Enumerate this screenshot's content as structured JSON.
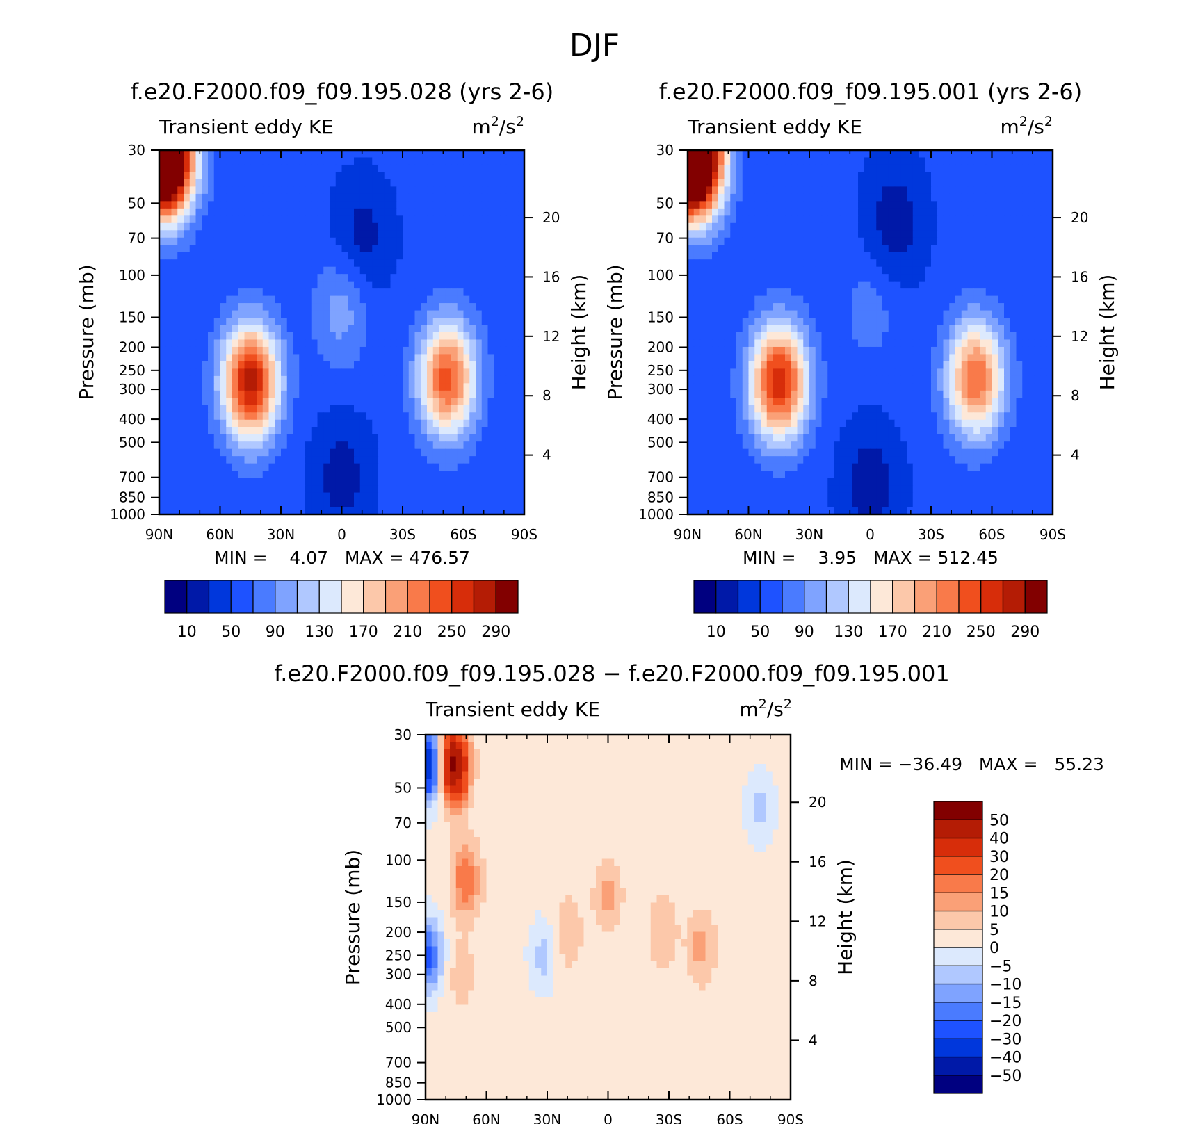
{
  "figure": {
    "title": "DJF"
  },
  "panels": [
    {
      "id": "case1",
      "title": "f.e20.F2000.f09_f09.195.028 (yrs 2-6)",
      "left_label": "Transient eddy KE",
      "right_label": "m²/s²",
      "stats": "MIN =    4.07   MAX = 476.57"
    },
    {
      "id": "case2",
      "title": "f.e20.F2000.f09_f09.195.001 (yrs 2-6)",
      "left_label": "Transient eddy KE",
      "right_label": "m²/s²",
      "stats": "MIN =    3.95   MAX = 512.45"
    },
    {
      "id": "diff",
      "title": "f.e20.F2000.f09_f09.195.028 − f.e20.F2000.f09_f09.195.001",
      "left_label": "Transient eddy KE",
      "right_label": "m²/s²",
      "stats": "MIN = −36.49   MAX =   55.23"
    }
  ],
  "chart_data": [
    {
      "type": "heatmap",
      "title": "f.e20.F2000.f09_f09.195.028 (yrs 2-6)",
      "variable": "Transient eddy KE",
      "units": "m²/s²",
      "xlabel": "",
      "ylabel": "Pressure (mb)",
      "ylabel_right": "Height (km)",
      "x_ticks": [
        "90N",
        "60N",
        "30N",
        "0",
        "30S",
        "60S",
        "90S"
      ],
      "y_ticks": [
        30,
        50,
        70,
        100,
        150,
        200,
        250,
        300,
        400,
        500,
        700,
        850,
        1000
      ],
      "y_scale": "log",
      "y_range": [
        1000,
        30
      ],
      "right_ticks": [
        4,
        8,
        12,
        16,
        20
      ],
      "x_range": [
        90,
        -90
      ],
      "min": 4.07,
      "max": 476.57,
      "colorbar": {
        "orientation": "horizontal",
        "levels": [
          10,
          30,
          50,
          70,
          90,
          110,
          130,
          150,
          170,
          190,
          210,
          230,
          250,
          270,
          290
        ],
        "tick_labels": [
          "10",
          "50",
          "90",
          "130",
          "170",
          "210",
          "250",
          "290"
        ],
        "colors": [
          "#000080",
          "#0019a8",
          "#0037dc",
          "#1e52ff",
          "#4a7bff",
          "#7fa3ff",
          "#b0c8ff",
          "#dce9fd",
          "#fde8d8",
          "#fcc8aa",
          "#faa077",
          "#f97a4a",
          "#f04f1e",
          "#d72d0a",
          "#b41c05",
          "#820000"
        ]
      },
      "features": [
        {
          "name": "NH stratospheric polar max",
          "lat": 88,
          "p": 32,
          "value": 476.57
        },
        {
          "name": "NH subtropical jet eddy max",
          "lat": 45,
          "p": 280,
          "value": 280
        },
        {
          "name": "SH jet eddy max",
          "lat": -52,
          "p": 270,
          "value": 240
        },
        {
          "name": "tropical upper-troposphere max",
          "lat": 0,
          "p": 140,
          "value": 100
        },
        {
          "name": "stratospheric minimum",
          "lat": -10,
          "p": 70,
          "value": 20
        },
        {
          "name": "tropical lower-troposphere minimum",
          "lat": 0,
          "p": 700,
          "value": 20
        }
      ]
    },
    {
      "type": "heatmap",
      "title": "f.e20.F2000.f09_f09.195.001 (yrs 2-6)",
      "variable": "Transient eddy KE",
      "units": "m²/s²",
      "xlabel": "",
      "ylabel": "Pressure (mb)",
      "ylabel_right": "Height (km)",
      "x_ticks": [
        "90N",
        "60N",
        "30N",
        "0",
        "30S",
        "60S",
        "90S"
      ],
      "y_ticks": [
        30,
        50,
        70,
        100,
        150,
        200,
        250,
        300,
        400,
        500,
        700,
        850,
        1000
      ],
      "y_scale": "log",
      "y_range": [
        1000,
        30
      ],
      "right_ticks": [
        4,
        8,
        12,
        16,
        20
      ],
      "x_range": [
        90,
        -90
      ],
      "min": 3.95,
      "max": 512.45,
      "colorbar": {
        "orientation": "horizontal",
        "levels": [
          10,
          30,
          50,
          70,
          90,
          110,
          130,
          150,
          170,
          190,
          210,
          230,
          250,
          270,
          290
        ],
        "tick_labels": [
          "10",
          "50",
          "90",
          "130",
          "170",
          "210",
          "250",
          "290"
        ],
        "colors": [
          "#000080",
          "#0019a8",
          "#0037dc",
          "#1e52ff",
          "#4a7bff",
          "#7fa3ff",
          "#b0c8ff",
          "#dce9fd",
          "#fde8d8",
          "#fcc8aa",
          "#faa077",
          "#f97a4a",
          "#f04f1e",
          "#d72d0a",
          "#b41c05",
          "#820000"
        ]
      },
      "features": [
        {
          "name": "NH stratospheric polar max",
          "lat": 88,
          "p": 32,
          "value": 512.45
        },
        {
          "name": "NH subtropical jet eddy max",
          "lat": 45,
          "p": 280,
          "value": 270
        },
        {
          "name": "SH jet eddy max",
          "lat": -52,
          "p": 270,
          "value": 230
        },
        {
          "name": "tropical upper-troposphere max",
          "lat": 0,
          "p": 140,
          "value": 80
        },
        {
          "name": "stratospheric minimum",
          "lat": -12,
          "p": 60,
          "value": 15
        },
        {
          "name": "tropical lower-troposphere minimum",
          "lat": 0,
          "p": 750,
          "value": 15
        }
      ]
    },
    {
      "type": "heatmap",
      "title": "f.e20.F2000.f09_f09.195.028 − f.e20.F2000.f09_f09.195.001",
      "variable": "Transient eddy KE",
      "units": "m²/s²",
      "xlabel": "",
      "ylabel": "Pressure (mb)",
      "ylabel_right": "Height (km)",
      "x_ticks": [
        "90N",
        "60N",
        "30N",
        "0",
        "30S",
        "60S",
        "90S"
      ],
      "y_ticks": [
        30,
        50,
        70,
        100,
        150,
        200,
        250,
        300,
        400,
        500,
        700,
        850,
        1000
      ],
      "y_scale": "log",
      "y_range": [
        1000,
        30
      ],
      "right_ticks": [
        4,
        8,
        12,
        16,
        20
      ],
      "x_range": [
        90,
        -90
      ],
      "min": -36.49,
      "max": 55.23,
      "colorbar": {
        "orientation": "vertical",
        "levels": [
          -50,
          -40,
          -30,
          -20,
          -15,
          -10,
          -5,
          0,
          5,
          10,
          15,
          20,
          30,
          40,
          50
        ],
        "tick_labels": [
          "−50",
          "−40",
          "−30",
          "−20",
          "−15",
          "−10",
          "−5",
          "0",
          "5",
          "10",
          "15",
          "20",
          "30",
          "40",
          "50"
        ],
        "colors": [
          "#000080",
          "#0019a8",
          "#0037dc",
          "#1e52ff",
          "#4a7bff",
          "#7fa3ff",
          "#b0c8ff",
          "#dce9fd",
          "#fde8d8",
          "#fcc8aa",
          "#faa077",
          "#f97a4a",
          "#f04f1e",
          "#d72d0a",
          "#b41c05",
          "#820000"
        ]
      },
      "features": [
        {
          "name": "NH polar stratosphere positive",
          "lat": 76,
          "p": 40,
          "value": 55.23
        },
        {
          "name": "NH polar edge negative",
          "lat": 89,
          "p": 40,
          "value": -36.49
        },
        {
          "name": "NH upper-troposphere positive",
          "lat": 70,
          "p": 120,
          "value": 20
        },
        {
          "name": "NH mid-troposphere positive",
          "lat": 72,
          "p": 300,
          "value": 8
        },
        {
          "name": "equatorial positive",
          "lat": 0,
          "p": 140,
          "value": 12
        },
        {
          "name": "subtropical positive",
          "lat": 20,
          "p": 200,
          "value": 10
        },
        {
          "name": "SH positive",
          "lat": -27,
          "p": 200,
          "value": 10
        },
        {
          "name": "SH midlatitude positive",
          "lat": -46,
          "p": 230,
          "value": 12
        },
        {
          "name": "subtropical negative",
          "lat": 32,
          "p": 250,
          "value": -7
        },
        {
          "name": "SH high-latitude negative",
          "lat": -75,
          "p": 60,
          "value": -7
        },
        {
          "name": "near-surface NH negative",
          "lat": 89,
          "p": 250,
          "value": -22
        }
      ]
    }
  ]
}
